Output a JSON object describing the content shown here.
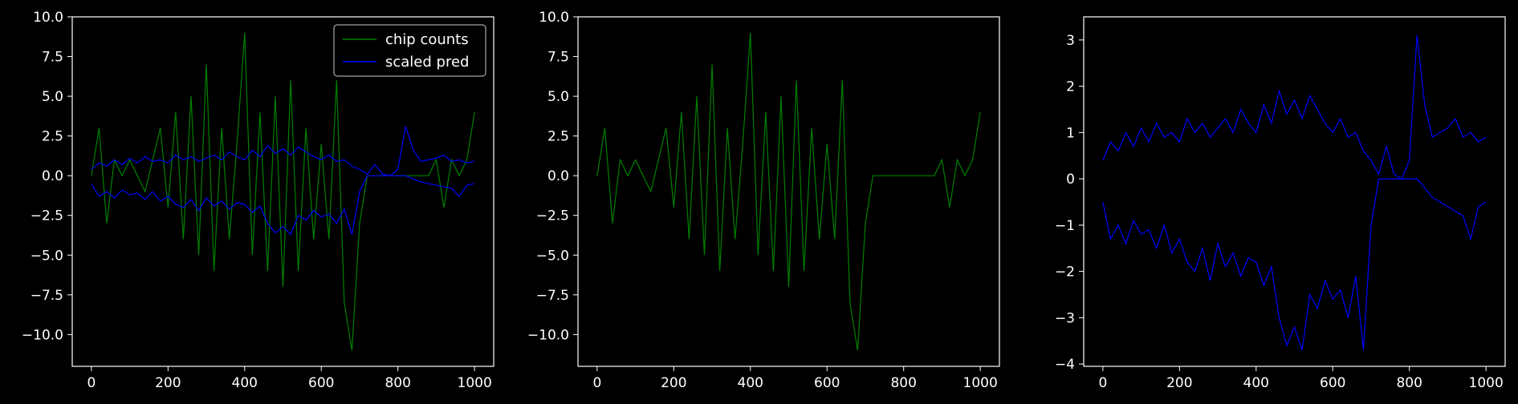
{
  "chart_data": [
    {
      "type": "line",
      "title": "",
      "xlabel": "",
      "ylabel": "",
      "xlim": [
        -50,
        1050
      ],
      "ylim": [
        -12,
        10
      ],
      "xticks": [
        0,
        200,
        400,
        600,
        800,
        1000
      ],
      "yticks": [
        -10.0,
        -7.5,
        -5.0,
        -2.5,
        0.0,
        2.5,
        5.0,
        7.5,
        10.0
      ],
      "ytick_labels": [
        "−10.0",
        "−7.5",
        "−5.0",
        "−2.5",
        "0.0",
        "2.5",
        "5.0",
        "7.5",
        "10.0"
      ],
      "legend": {
        "placement": "top-right",
        "entries": [
          "chip counts",
          "scaled pred"
        ]
      },
      "series": [
        {
          "name": "chip counts",
          "color": "#008000",
          "x": [
            0,
            20,
            40,
            60,
            80,
            100,
            120,
            140,
            160,
            180,
            200,
            220,
            240,
            260,
            280,
            300,
            320,
            340,
            360,
            380,
            400,
            420,
            440,
            460,
            480,
            500,
            520,
            540,
            560,
            580,
            600,
            620,
            640,
            660,
            680,
            700,
            720,
            740,
            760,
            780,
            800,
            820,
            840,
            860,
            880,
            900,
            920,
            940,
            960,
            980,
            1000
          ],
          "y": [
            0,
            3,
            -3,
            1,
            0,
            1,
            0,
            -1,
            1,
            3,
            -2,
            4,
            -4,
            5,
            -5,
            7,
            -6,
            3,
            -4,
            2,
            9,
            -5,
            4,
            -6,
            5,
            -7,
            6,
            -6,
            3,
            -4,
            2,
            -4,
            6,
            -8,
            -11,
            -3,
            0,
            0,
            0,
            0,
            0,
            0,
            0,
            0,
            0,
            1,
            -2,
            1,
            0,
            1,
            4
          ]
        },
        {
          "name": "scaled pred",
          "color": "#0000ff",
          "x": [
            0,
            20,
            40,
            60,
            80,
            100,
            120,
            140,
            160,
            180,
            200,
            220,
            240,
            260,
            280,
            300,
            320,
            340,
            360,
            380,
            400,
            420,
            440,
            460,
            480,
            500,
            520,
            540,
            560,
            580,
            600,
            620,
            640,
            660,
            680,
            700,
            720,
            740,
            760,
            780,
            800,
            820,
            840,
            860,
            880,
            900,
            920,
            940,
            960,
            980,
            1000
          ],
          "upper": [
            0.4,
            0.8,
            0.6,
            1.0,
            0.7,
            1.1,
            0.8,
            1.2,
            0.9,
            1.0,
            0.8,
            1.3,
            1.0,
            1.2,
            0.9,
            1.1,
            1.3,
            1.0,
            1.5,
            1.2,
            1.0,
            1.6,
            1.2,
            1.9,
            1.4,
            1.7,
            1.3,
            1.8,
            1.5,
            1.2,
            1.0,
            1.3,
            0.9,
            1.0,
            0.6,
            0.4,
            0.1,
            0.7,
            0.1,
            0.0,
            0.4,
            3.1,
            1.6,
            0.9,
            1.0,
            1.1,
            1.3,
            0.9,
            1.0,
            0.8,
            0.9
          ],
          "lower": [
            -0.5,
            -1.3,
            -1.0,
            -1.4,
            -0.9,
            -1.2,
            -1.1,
            -1.5,
            -1.0,
            -1.6,
            -1.3,
            -1.8,
            -2.0,
            -1.5,
            -2.2,
            -1.4,
            -1.9,
            -1.6,
            -2.1,
            -1.7,
            -1.8,
            -2.3,
            -1.9,
            -3.0,
            -3.6,
            -3.2,
            -3.7,
            -2.5,
            -2.8,
            -2.2,
            -2.6,
            -2.4,
            -3.0,
            -2.1,
            -3.7,
            -1.0,
            0.0,
            0.0,
            0.0,
            0.0,
            0.0,
            0.0,
            -0.2,
            -0.4,
            -0.5,
            -0.6,
            -0.7,
            -0.8,
            -1.3,
            -0.6,
            -0.5
          ]
        }
      ]
    },
    {
      "type": "line",
      "title": "",
      "xlabel": "",
      "ylabel": "",
      "xlim": [
        -50,
        1050
      ],
      "ylim": [
        -12,
        10
      ],
      "xticks": [
        0,
        200,
        400,
        600,
        800,
        1000
      ],
      "yticks": [
        -10.0,
        -7.5,
        -5.0,
        -2.5,
        0.0,
        2.5,
        5.0,
        7.5,
        10.0
      ],
      "ytick_labels": [
        "−10.0",
        "−7.5",
        "−5.0",
        "−2.5",
        "0.0",
        "2.5",
        "5.0",
        "7.5",
        "10.0"
      ],
      "series": [
        {
          "color": "#008000",
          "x": [
            0,
            20,
            40,
            60,
            80,
            100,
            120,
            140,
            160,
            180,
            200,
            220,
            240,
            260,
            280,
            300,
            320,
            340,
            360,
            380,
            400,
            420,
            440,
            460,
            480,
            500,
            520,
            540,
            560,
            580,
            600,
            620,
            640,
            660,
            680,
            700,
            720,
            740,
            760,
            780,
            800,
            820,
            840,
            860,
            880,
            900,
            920,
            940,
            960,
            980,
            1000
          ],
          "y": [
            0,
            3,
            -3,
            1,
            0,
            1,
            0,
            -1,
            1,
            3,
            -2,
            4,
            -4,
            5,
            -5,
            7,
            -6,
            3,
            -4,
            2,
            9,
            -5,
            4,
            -6,
            5,
            -7,
            6,
            -6,
            3,
            -4,
            2,
            -4,
            6,
            -8,
            -11,
            -3,
            0,
            0,
            0,
            0,
            0,
            0,
            0,
            0,
            0,
            1,
            -2,
            1,
            0,
            1,
            4
          ]
        }
      ]
    },
    {
      "type": "line",
      "title": "",
      "xlabel": "",
      "ylabel": "",
      "xlim": [
        -50,
        1050
      ],
      "ylim": [
        -4.05,
        3.5
      ],
      "xticks": [
        0,
        200,
        400,
        600,
        800,
        1000
      ],
      "yticks": [
        -4,
        -3,
        -2,
        -1,
        0,
        1,
        2,
        3
      ],
      "ytick_labels": [
        "−4",
        "−3",
        "−2",
        "−1",
        "0",
        "1",
        "2",
        "3"
      ],
      "series": [
        {
          "color": "#0000ff",
          "x": [
            0,
            20,
            40,
            60,
            80,
            100,
            120,
            140,
            160,
            180,
            200,
            220,
            240,
            260,
            280,
            300,
            320,
            340,
            360,
            380,
            400,
            420,
            440,
            460,
            480,
            500,
            520,
            540,
            560,
            580,
            600,
            620,
            640,
            660,
            680,
            700,
            720,
            740,
            760,
            780,
            800,
            820,
            840,
            860,
            880,
            900,
            920,
            940,
            960,
            980,
            1000
          ],
          "upper": [
            0.4,
            0.8,
            0.6,
            1.0,
            0.7,
            1.1,
            0.8,
            1.2,
            0.9,
            1.0,
            0.8,
            1.3,
            1.0,
            1.2,
            0.9,
            1.1,
            1.3,
            1.0,
            1.5,
            1.2,
            1.0,
            1.6,
            1.2,
            1.9,
            1.4,
            1.7,
            1.3,
            1.8,
            1.5,
            1.2,
            1.0,
            1.3,
            0.9,
            1.0,
            0.6,
            0.4,
            0.1,
            0.7,
            0.1,
            0.0,
            0.4,
            3.1,
            1.6,
            0.9,
            1.0,
            1.1,
            1.3,
            0.9,
            1.0,
            0.8,
            0.9
          ],
          "lower": [
            -0.5,
            -1.3,
            -1.0,
            -1.4,
            -0.9,
            -1.2,
            -1.1,
            -1.5,
            -1.0,
            -1.6,
            -1.3,
            -1.8,
            -2.0,
            -1.5,
            -2.2,
            -1.4,
            -1.9,
            -1.6,
            -2.1,
            -1.7,
            -1.8,
            -2.3,
            -1.9,
            -3.0,
            -3.6,
            -3.2,
            -3.7,
            -2.5,
            -2.8,
            -2.2,
            -2.6,
            -2.4,
            -3.0,
            -2.1,
            -3.7,
            -1.0,
            0.0,
            0.0,
            0.0,
            0.0,
            0.0,
            0.0,
            -0.2,
            -0.4,
            -0.5,
            -0.6,
            -0.7,
            -0.8,
            -1.3,
            -0.6,
            -0.5
          ]
        }
      ]
    }
  ]
}
